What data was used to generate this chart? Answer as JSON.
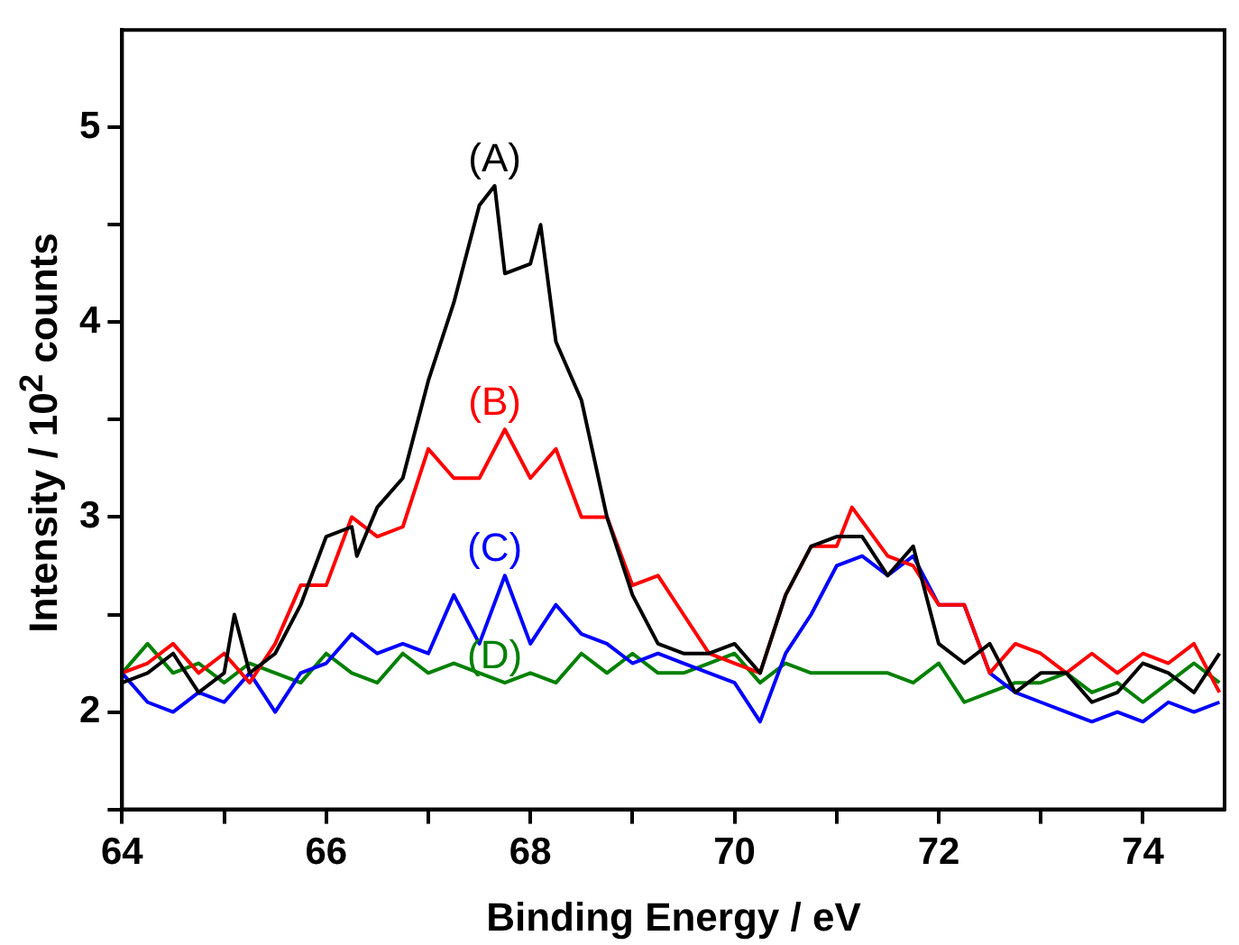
{
  "chart_data": {
    "type": "line",
    "xlabel": "Binding Energy / eV",
    "ylabel": "Intensity / 10$^{2}$ counts",
    "xlim": [
      64,
      74.8
    ],
    "ylim": [
      1.5,
      5.5
    ],
    "xticks": [
      64,
      {
        "value": 65,
        "label": null
      },
      66,
      {
        "value": 67,
        "label": null
      },
      68,
      {
        "value": 69,
        "label": null
      },
      70,
      {
        "value": 71,
        "label": null
      },
      72,
      {
        "value": 73,
        "label": null
      },
      74
    ],
    "yticks": [
      {
        "value": 1.5,
        "label": null
      },
      2,
      {
        "value": 2.5,
        "label": null
      },
      3,
      {
        "value": 3.5,
        "label": null
      },
      4,
      {
        "value": 4.5,
        "label": null
      },
      5
    ],
    "grid": false,
    "legend": false,
    "marker": "none",
    "line_style": "solid",
    "series": [
      {
        "name": "(A)",
        "color": "#000000",
        "x": [
          64,
          64.25,
          64.5,
          64.75,
          65,
          65.1,
          65.25,
          65.5,
          65.75,
          66,
          66.25,
          66.3,
          66.5,
          66.75,
          67,
          67.25,
          67.5,
          67.65,
          67.75,
          68,
          68.1,
          68.25,
          68.5,
          68.75,
          69,
          69.25,
          69.5,
          69.75,
          70,
          70.25,
          70.5,
          70.75,
          71,
          71.25,
          71.5,
          71.75,
          72,
          72.25,
          72.5,
          72.75,
          73,
          73.25,
          73.5,
          73.75,
          74,
          74.25,
          74.5,
          74.75
        ],
        "values": [
          2.15,
          2.2,
          2.3,
          2.1,
          2.2,
          2.5,
          2.2,
          2.3,
          2.55,
          2.9,
          2.95,
          2.8,
          3.05,
          3.2,
          3.7,
          4.1,
          4.6,
          4.7,
          4.25,
          4.3,
          4.5,
          3.9,
          3.6,
          3.0,
          2.6,
          2.35,
          2.3,
          2.3,
          2.35,
          2.2,
          2.6,
          2.85,
          2.9,
          2.9,
          2.7,
          2.85,
          2.35,
          2.25,
          2.35,
          2.1,
          2.2,
          2.2,
          2.05,
          2.1,
          2.25,
          2.2,
          2.1,
          2.3
        ]
      },
      {
        "name": "(B)",
        "color": "#ff0000",
        "x": [
          64,
          64.25,
          64.5,
          64.75,
          65,
          65.25,
          65.5,
          65.75,
          66,
          66.25,
          66.5,
          66.75,
          67,
          67.25,
          67.5,
          67.75,
          68,
          68.25,
          68.5,
          68.75,
          69,
          69.25,
          69.5,
          69.75,
          70,
          70.25,
          70.5,
          70.75,
          71,
          71.15,
          71.5,
          71.75,
          72,
          72.25,
          72.5,
          72.75,
          73,
          73.25,
          73.5,
          73.75,
          74,
          74.25,
          74.5,
          74.75
        ],
        "values": [
          2.2,
          2.25,
          2.35,
          2.2,
          2.3,
          2.15,
          2.35,
          2.65,
          2.65,
          3.0,
          2.9,
          2.95,
          3.35,
          3.2,
          3.2,
          3.45,
          3.2,
          3.35,
          3.0,
          3.0,
          2.65,
          2.7,
          2.5,
          2.3,
          2.25,
          2.2,
          2.6,
          2.85,
          2.85,
          3.05,
          2.8,
          2.75,
          2.55,
          2.55,
          2.2,
          2.35,
          2.3,
          2.2,
          2.3,
          2.2,
          2.3,
          2.25,
          2.35,
          2.1
        ]
      },
      {
        "name": "(C)",
        "color": "#0000ff",
        "x": [
          64,
          64.25,
          64.5,
          64.75,
          65,
          65.25,
          65.5,
          65.75,
          66,
          66.25,
          66.5,
          66.75,
          67,
          67.25,
          67.5,
          67.75,
          68,
          68.25,
          68.5,
          68.75,
          69,
          69.25,
          69.5,
          69.75,
          70,
          70.25,
          70.5,
          70.75,
          71,
          71.25,
          71.5,
          71.75,
          72,
          72.25,
          72.5,
          72.75,
          73,
          73.25,
          73.5,
          73.75,
          74,
          74.25,
          74.5,
          74.75
        ],
        "values": [
          2.2,
          2.05,
          2.0,
          2.1,
          2.05,
          2.2,
          2.0,
          2.2,
          2.25,
          2.4,
          2.3,
          2.35,
          2.3,
          2.6,
          2.35,
          2.7,
          2.35,
          2.55,
          2.4,
          2.35,
          2.25,
          2.3,
          2.25,
          2.2,
          2.15,
          1.95,
          2.3,
          2.5,
          2.75,
          2.8,
          2.7,
          2.8,
          2.55,
          2.55,
          2.2,
          2.1,
          2.05,
          2.0,
          1.95,
          2.0,
          1.95,
          2.05,
          2.0,
          2.05
        ]
      },
      {
        "name": "(D)",
        "color": "#008000",
        "x": [
          64,
          64.25,
          64.5,
          64.75,
          65,
          65.25,
          65.5,
          65.75,
          66,
          66.25,
          66.5,
          66.75,
          67,
          67.25,
          67.5,
          67.75,
          68,
          68.25,
          68.5,
          68.75,
          69,
          69.25,
          69.5,
          69.75,
          70,
          70.25,
          70.5,
          70.75,
          71,
          71.25,
          71.5,
          71.75,
          72,
          72.25,
          72.5,
          72.75,
          73,
          73.25,
          73.5,
          73.75,
          74,
          74.25,
          74.5,
          74.75
        ],
        "values": [
          2.2,
          2.35,
          2.2,
          2.25,
          2.15,
          2.25,
          2.2,
          2.15,
          2.3,
          2.2,
          2.15,
          2.3,
          2.2,
          2.25,
          2.2,
          2.15,
          2.2,
          2.15,
          2.3,
          2.2,
          2.3,
          2.2,
          2.2,
          2.25,
          2.3,
          2.15,
          2.25,
          2.2,
          2.2,
          2.2,
          2.2,
          2.15,
          2.25,
          2.05,
          2.1,
          2.15,
          2.15,
          2.2,
          2.1,
          2.15,
          2.05,
          2.15,
          2.25,
          2.15
        ]
      }
    ]
  }
}
